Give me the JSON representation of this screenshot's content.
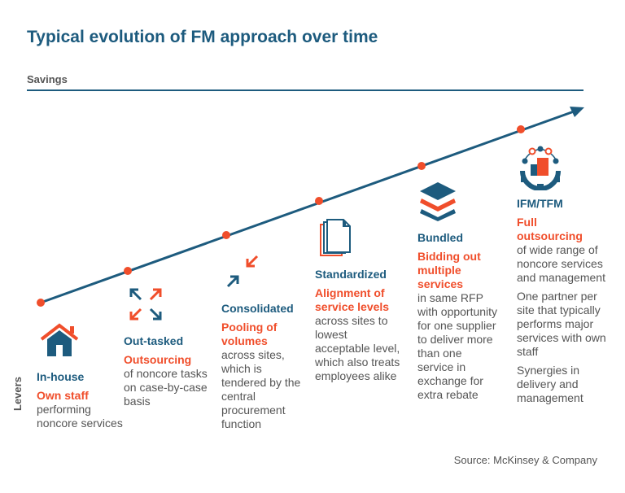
{
  "title": "Typical evolution of FM approach over time",
  "axis_top_label": "Savings",
  "axis_side_label": "Levers",
  "colors": {
    "navy": "#1d5b7e",
    "orange": "#f04e2b",
    "text": "#555555"
  },
  "stages": [
    {
      "name": "In-house",
      "icon": "house-icon",
      "highlight": "Own staff",
      "paragraphs": [
        "performing noncore services"
      ]
    },
    {
      "name": "Out-tasked",
      "icon": "expand-arrows-icon",
      "highlight": "Outsourcing",
      "paragraphs": [
        "of noncore tasks on case-by-case basis"
      ]
    },
    {
      "name": "Consolidated",
      "icon": "converge-arrows-icon",
      "highlight": "Pooling of volumes",
      "paragraphs": [
        "across sites, which is tendered by the central procurement function"
      ]
    },
    {
      "name": "Standardized",
      "icon": "documents-icon",
      "highlight": "Alignment of service levels",
      "paragraphs": [
        "across sites to lowest acceptable level, which also treats employees alike"
      ]
    },
    {
      "name": "Bundled",
      "icon": "layers-icon",
      "highlight": "Bidding out multiple services",
      "paragraphs": [
        "in same RFP with opportunity for one supplier to deliver more than one service in exchange for extra rebate"
      ]
    },
    {
      "name": "IFM/TFM",
      "icon": "gear-building-icon",
      "highlight": "Full outsourcing",
      "paragraphs": [
        "of wide range of noncore services and management",
        "One partner per site that typically performs major services with own staff",
        "Synergies in delivery and management"
      ]
    }
  ],
  "source": "Source: McKinsey & Company"
}
